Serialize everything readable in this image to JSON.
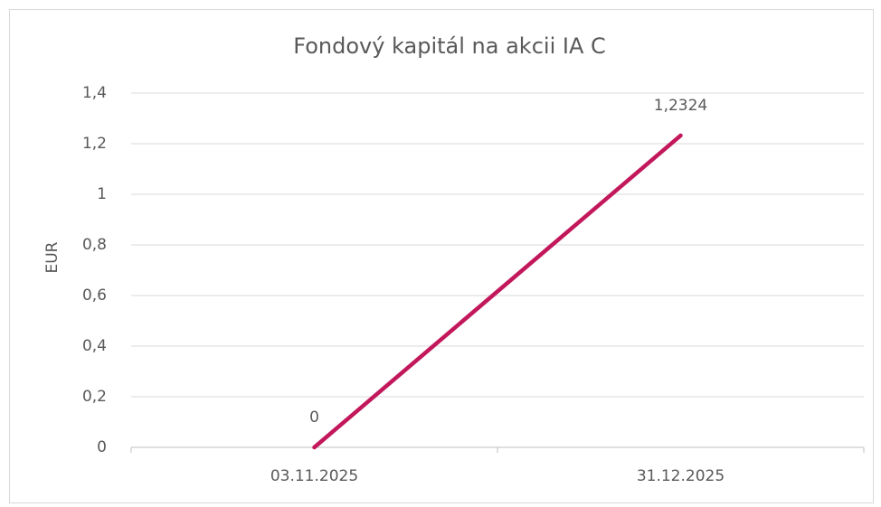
{
  "chart_data": {
    "type": "line",
    "title": "Fondový kapitál na akcii IA C",
    "y_axis_label": "EUR",
    "categories": [
      "03.11.2025",
      "31.12.2025"
    ],
    "series": [
      {
        "name": "Fondový kapitál na akcii IA C",
        "color": "#c2185b",
        "values": [
          0,
          1.2324
        ],
        "value_labels": [
          "0",
          "1,2324"
        ]
      }
    ],
    "ylim": [
      0,
      1.4
    ],
    "yticks": [
      0,
      {
        "value": 0.2,
        "label": "0,2"
      },
      {
        "value": 0.4,
        "label": "0,4"
      },
      {
        "value": 0.6,
        "label": "0,6"
      },
      {
        "value": 0.8,
        "label": "0,8"
      },
      1,
      {
        "value": 1.2,
        "label": "1,2"
      },
      {
        "value": 1.4,
        "label": "1,4"
      }
    ],
    "grid": true,
    "legend": false
  }
}
